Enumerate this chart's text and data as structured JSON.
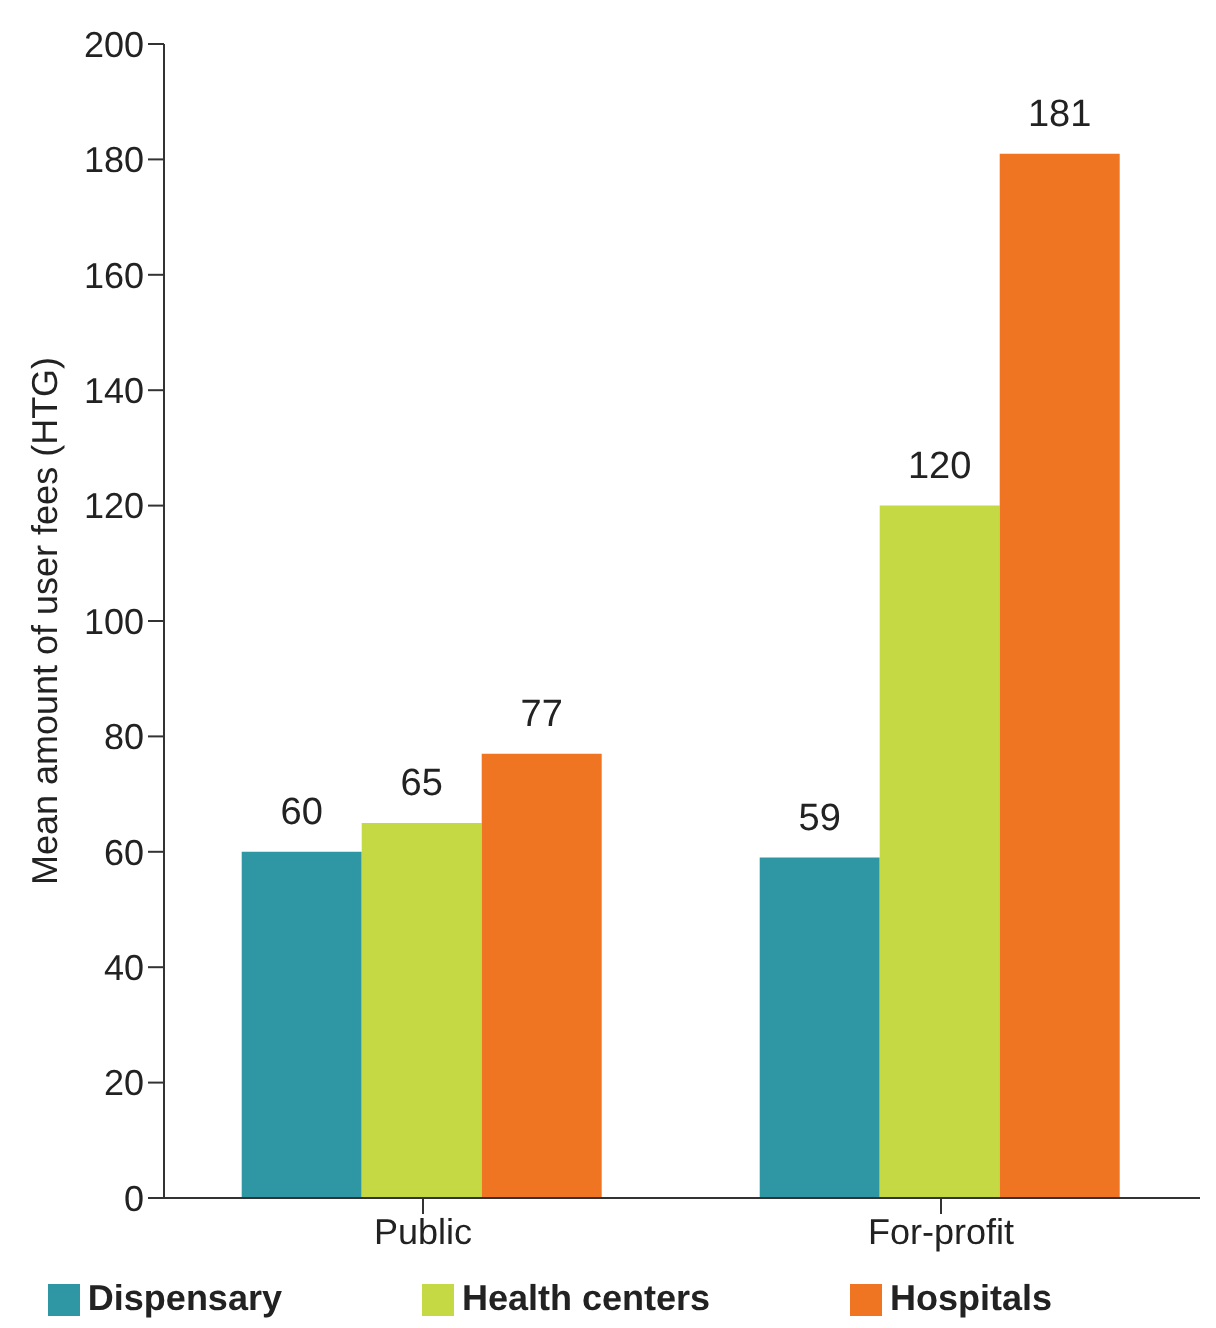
{
  "chart_data": {
    "type": "bar",
    "ylabel": "Mean amount of user fees (HTG)",
    "categories": [
      "Public",
      "For-profit"
    ],
    "series": [
      {
        "name": "Dispensary",
        "color": "#2e97a3",
        "values": [
          60,
          59
        ]
      },
      {
        "name": "Health centers",
        "color": "#c5d944",
        "values": [
          65,
          120
        ]
      },
      {
        "name": "Hospitals",
        "color": "#f07522",
        "values": [
          77,
          181
        ]
      }
    ],
    "ylim": [
      0,
      200
    ],
    "yticks": [
      0,
      20,
      40,
      60,
      80,
      100,
      120,
      140,
      160,
      180,
      200
    ],
    "data_labels": true,
    "legend": "bottom",
    "grid": false
  }
}
